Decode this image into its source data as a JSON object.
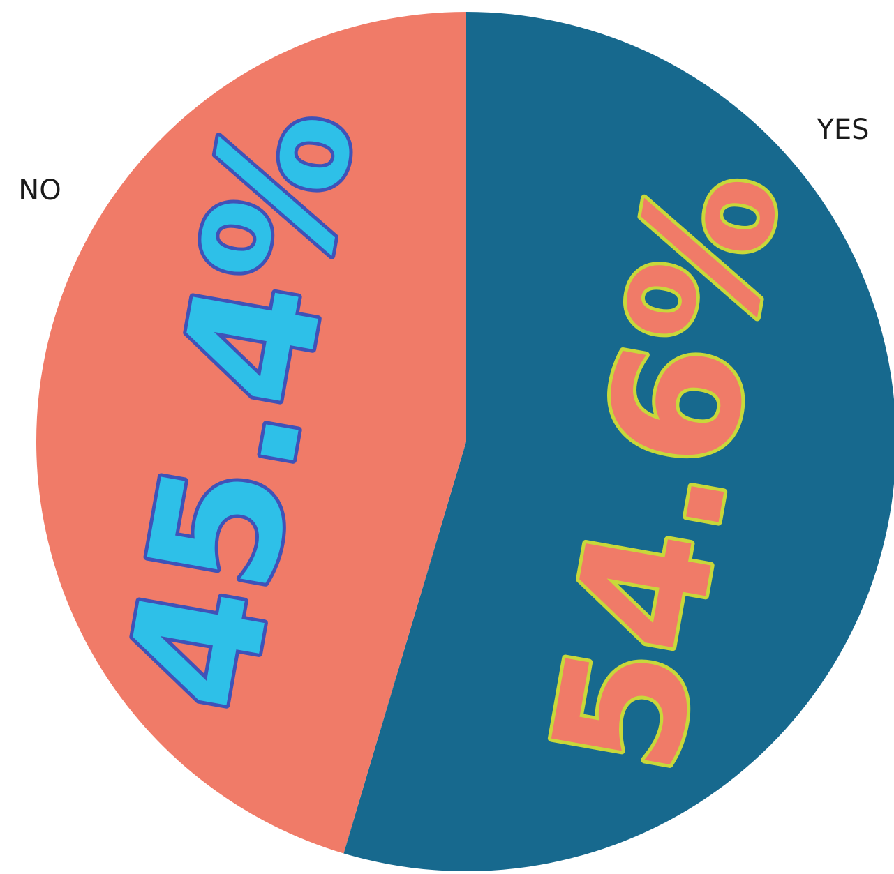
{
  "chart_data": {
    "type": "pie",
    "categories": [
      "YES",
      "NO"
    ],
    "values": [
      54.6,
      45.4
    ],
    "value_labels": [
      "54.6%",
      "45.4%"
    ],
    "colors": [
      "#17698e",
      "#f07b68"
    ]
  }
}
